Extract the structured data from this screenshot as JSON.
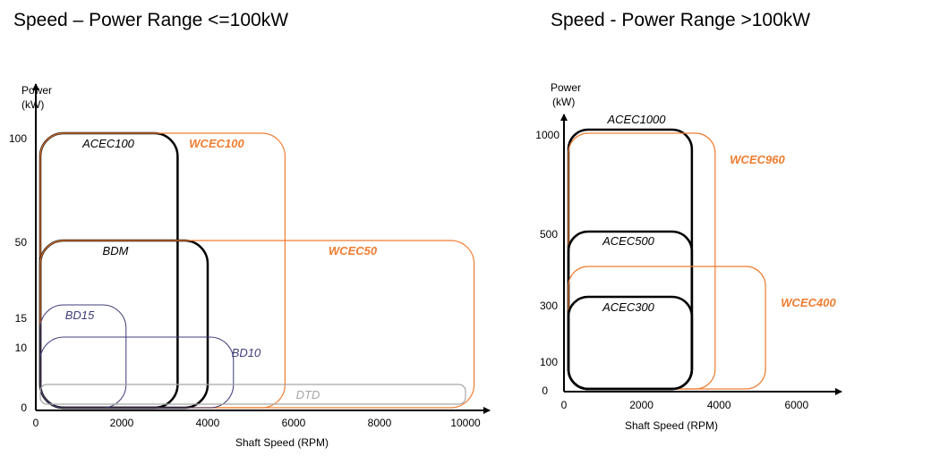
{
  "chart_data": [
    {
      "type": "area",
      "title": "Speed – Power Range <=100kW",
      "ylabel": "Power\n(kW)",
      "xlabel": "Shaft Speed (RPM)",
      "x_ticks": [
        "0",
        "2000",
        "4000",
        "6000",
        "8000",
        "10000"
      ],
      "y_ticks": [
        "0",
        "10",
        "15",
        "50",
        "100"
      ],
      "xlim": [
        0,
        10000
      ],
      "regions": [
        {
          "name": "ACEC100",
          "x_max": 3300,
          "p_max": 100,
          "color": "#000000"
        },
        {
          "name": "WCEC100",
          "x_max": 5800,
          "p_max": 100,
          "color": "#ED7D31"
        },
        {
          "name": "BDM",
          "x_max": 4000,
          "p_max": 50,
          "color": "#000000"
        },
        {
          "name": "WCEC50",
          "x_max": 10200,
          "p_max": 50,
          "color": "#ED7D31"
        },
        {
          "name": "BD15",
          "x_max": 2100,
          "p_max": 15,
          "color": "#3F3D7A"
        },
        {
          "name": "BD10",
          "x_max": 4600,
          "p_max": 10,
          "color": "#3F3D7A"
        },
        {
          "name": "DTD",
          "x_max": 10000,
          "p_max": 3,
          "color": "#A6A6A6"
        }
      ]
    },
    {
      "type": "area",
      "title": "Speed - Power Range >100kW",
      "ylabel": "Power\n(kW)",
      "xlabel": "Shaft Speed (RPM)",
      "x_ticks": [
        "0",
        "2000",
        "4000",
        "6000"
      ],
      "y_ticks": [
        "0",
        "100",
        "300",
        "500",
        "1000"
      ],
      "xlim": [
        0,
        6000
      ],
      "regions": [
        {
          "name": "ACEC1000",
          "x_max": 3300,
          "p_max": 1000,
          "color": "#000000"
        },
        {
          "name": "WCEC960",
          "x_max": 3900,
          "p_max": 960,
          "color": "#ED7D31"
        },
        {
          "name": "ACEC500",
          "x_max": 3300,
          "p_max": 500,
          "color": "#000000"
        },
        {
          "name": "WCEC400",
          "x_max": 5200,
          "p_max": 400,
          "color": "#ED7D31"
        },
        {
          "name": "ACEC300",
          "x_max": 3300,
          "p_max": 300,
          "color": "#000000"
        }
      ]
    }
  ]
}
